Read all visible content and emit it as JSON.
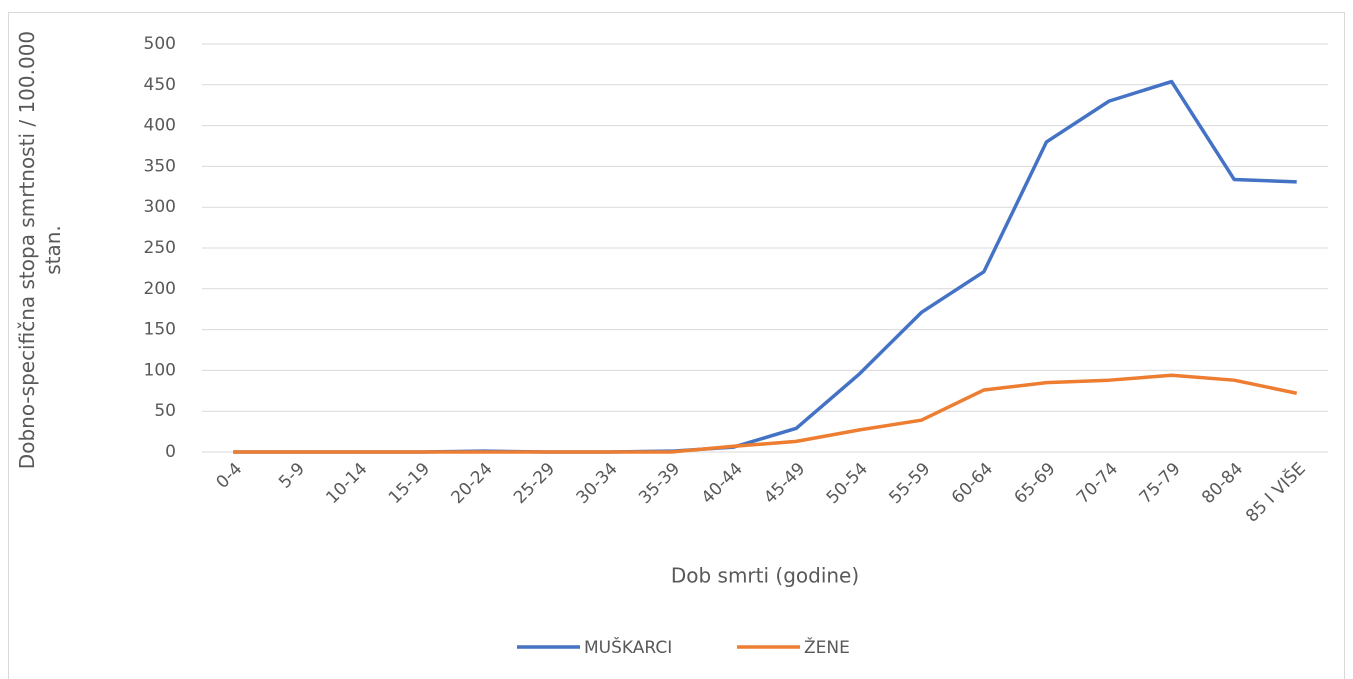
{
  "chart_data": {
    "type": "line",
    "x_label": "Dob smrti (godine)",
    "y_label": "Dobno-specifična stopa smrtnosti / 100.000 stan.",
    "categories": [
      "0-4",
      "5-9",
      "10-14",
      "15-19",
      "20-24",
      "25-29",
      "30-34",
      "35-39",
      "40-44",
      "45-49",
      "50-54",
      "55-59",
      "60-64",
      "65-69",
      "70-74",
      "75-79",
      "80-84",
      "85 I VIŠE"
    ],
    "series": [
      {
        "name": "MUŠKARCI",
        "color": "#4472c4",
        "values": [
          0,
          0,
          0,
          0,
          1,
          0,
          0,
          1,
          6,
          29,
          95,
          171,
          221,
          380,
          430,
          454,
          334,
          331
        ]
      },
      {
        "name": "ŽENE",
        "color": "#ed7d31",
        "values": [
          0,
          0,
          0,
          0,
          0,
          0,
          0,
          0,
          7,
          13,
          27,
          39,
          76,
          85,
          88,
          94,
          88,
          72
        ]
      }
    ],
    "ylim": [
      0,
      500
    ],
    "yticks": [
      0,
      50,
      100,
      150,
      200,
      250,
      300,
      350,
      400,
      450,
      500
    ],
    "grid": true
  }
}
